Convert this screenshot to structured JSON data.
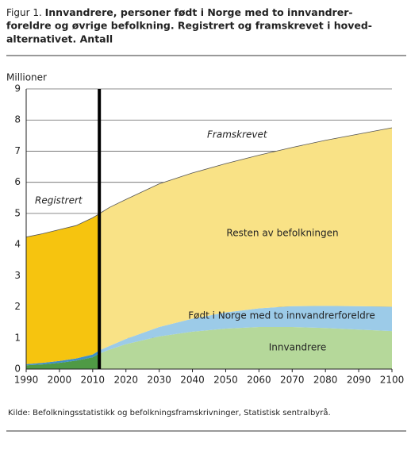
{
  "chart_data": {
    "type": "stacked-area",
    "figure_label": "Figur 1.",
    "title_lines": [
      "Innvandrere, personer født i Norge med to innvandrer-",
      "foreldre og øvrige befolkning. Registrert og framskrevet i hoved-",
      "alternativet. Antall"
    ],
    "y_label": "Millioner",
    "x": [
      1990,
      1995,
      2000,
      2005,
      2010,
      2012,
      2015,
      2020,
      2030,
      2040,
      2050,
      2060,
      2070,
      2080,
      2090,
      2100
    ],
    "series": [
      {
        "name": "Innvandrere",
        "color": "#b5d89a",
        "historic_color": "#4f9a45",
        "values": [
          0.12,
          0.15,
          0.2,
          0.27,
          0.38,
          0.5,
          0.62,
          0.8,
          1.05,
          1.2,
          1.3,
          1.35,
          1.35,
          1.32,
          1.27,
          1.22
        ]
      },
      {
        "name": "Født i Norge med to innvandrerforeldre",
        "color": "#9ccbe8",
        "historic_color": "#3f8fc8",
        "values": [
          0.04,
          0.05,
          0.06,
          0.07,
          0.09,
          0.1,
          0.12,
          0.17,
          0.3,
          0.42,
          0.52,
          0.6,
          0.67,
          0.71,
          0.75,
          0.78
        ]
      },
      {
        "name": "Resten av befolkningen",
        "color": "#f9e286",
        "historic_color": "#f6c40f",
        "values": [
          4.08,
          4.15,
          4.22,
          4.27,
          4.39,
          4.39,
          4.45,
          4.48,
          4.6,
          4.68,
          4.78,
          4.92,
          5.1,
          5.32,
          5.53,
          5.75
        ]
      }
    ],
    "divider": 2012,
    "annotations": [
      "Registrert",
      "Framskrevet"
    ],
    "xlim": [
      1990,
      2100
    ],
    "xticks": [
      1990,
      2000,
      2010,
      2020,
      2030,
      2040,
      2050,
      2060,
      2070,
      2080,
      2090,
      2100
    ],
    "ylim": [
      0,
      9
    ],
    "yticks": [
      0,
      1,
      2,
      3,
      4,
      5,
      6,
      7,
      8,
      9
    ],
    "grid": true,
    "source": "Kilde: Befolkningsstatistikk og befolkningsframskrivninger, Statistisk sentralbyrå."
  }
}
